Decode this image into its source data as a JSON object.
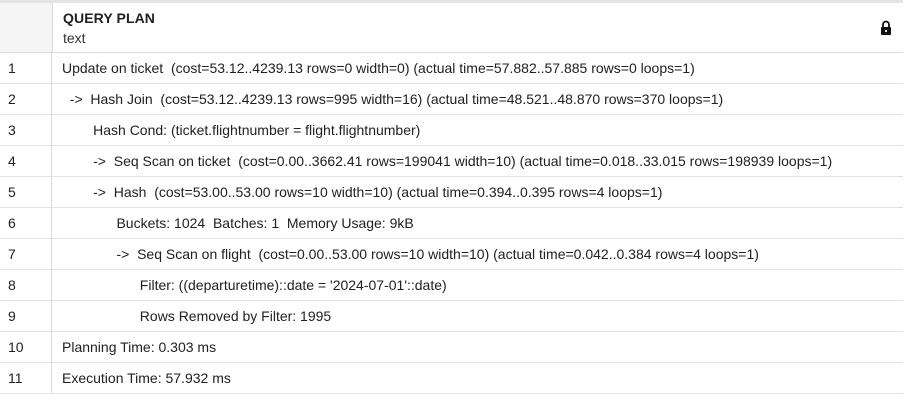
{
  "header": {
    "column_title": "QUERY PLAN",
    "column_type": "text",
    "lock_icon": "lock-icon"
  },
  "rows": [
    {
      "num": "1",
      "text": "Update on ticket  (cost=53.12..4239.13 rows=0 width=0) (actual time=57.882..57.885 rows=0 loops=1)"
    },
    {
      "num": "2",
      "text": "  ->  Hash Join  (cost=53.12..4239.13 rows=995 width=16) (actual time=48.521..48.870 rows=370 loops=1)"
    },
    {
      "num": "3",
      "text": "        Hash Cond: (ticket.flightnumber = flight.flightnumber)"
    },
    {
      "num": "4",
      "text": "        ->  Seq Scan on ticket  (cost=0.00..3662.41 rows=199041 width=10) (actual time=0.018..33.015 rows=198939 loops=1)"
    },
    {
      "num": "5",
      "text": "        ->  Hash  (cost=53.00..53.00 rows=10 width=10) (actual time=0.394..0.395 rows=4 loops=1)"
    },
    {
      "num": "6",
      "text": "              Buckets: 1024  Batches: 1  Memory Usage: 9kB"
    },
    {
      "num": "7",
      "text": "              ->  Seq Scan on flight  (cost=0.00..53.00 rows=10 width=10) (actual time=0.042..0.384 rows=4 loops=1)"
    },
    {
      "num": "8",
      "text": "                    Filter: ((departuretime)::date = '2024-07-01'::date)"
    },
    {
      "num": "9",
      "text": "                    Rows Removed by Filter: 1995"
    },
    {
      "num": "10",
      "text": "Planning Time: 0.303 ms"
    },
    {
      "num": "11",
      "text": "Execution Time: 57.932 ms"
    }
  ]
}
